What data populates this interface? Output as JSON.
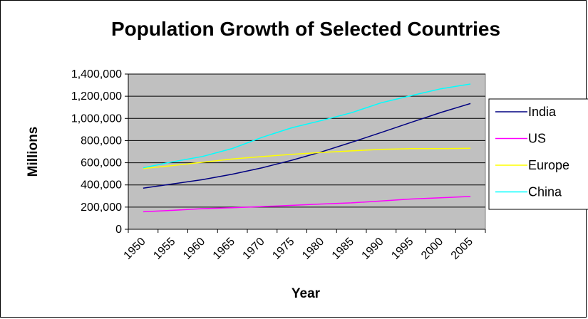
{
  "chart_data": {
    "type": "line",
    "title": "Population Growth of Selected Countries",
    "xlabel": "Year",
    "ylabel": "Millions",
    "categories": [
      "1950",
      "1955",
      "1960",
      "1965",
      "1970",
      "1975",
      "1980",
      "1985",
      "1990",
      "1995",
      "2000",
      "2005"
    ],
    "ylim": [
      0,
      1400000
    ],
    "yticks": [
      0,
      200000,
      400000,
      600000,
      800000,
      1000000,
      1200000,
      1400000
    ],
    "ytick_labels": [
      "0",
      "200,000",
      "400,000",
      "600,000",
      "800,000",
      "1,000,000",
      "1,200,000",
      "1,400,000"
    ],
    "grid": true,
    "plot_background": "#c0c0c0",
    "legend_position": "right",
    "series": [
      {
        "name": "India",
        "color": "#000080",
        "values": [
          371000,
          409000,
          448000,
          497000,
          555000,
          623000,
          699000,
          784000,
          873000,
          964000,
          1053000,
          1134000
        ]
      },
      {
        "name": "US",
        "color": "#ff00ff",
        "values": [
          158000,
          171000,
          186000,
          194000,
          205000,
          216000,
          228000,
          238000,
          255000,
          273000,
          284000,
          296000
        ]
      },
      {
        "name": "Europe",
        "color": "#ffff00",
        "values": [
          548000,
          575000,
          604000,
          634000,
          656000,
          676000,
          693000,
          707000,
          721000,
          727000,
          727000,
          730000
        ]
      },
      {
        "name": "China",
        "color": "#00ffff",
        "values": [
          555000,
          609000,
          657000,
          729000,
          830000,
          916000,
          981000,
          1051000,
          1141000,
          1205000,
          1267000,
          1310000
        ]
      }
    ]
  }
}
